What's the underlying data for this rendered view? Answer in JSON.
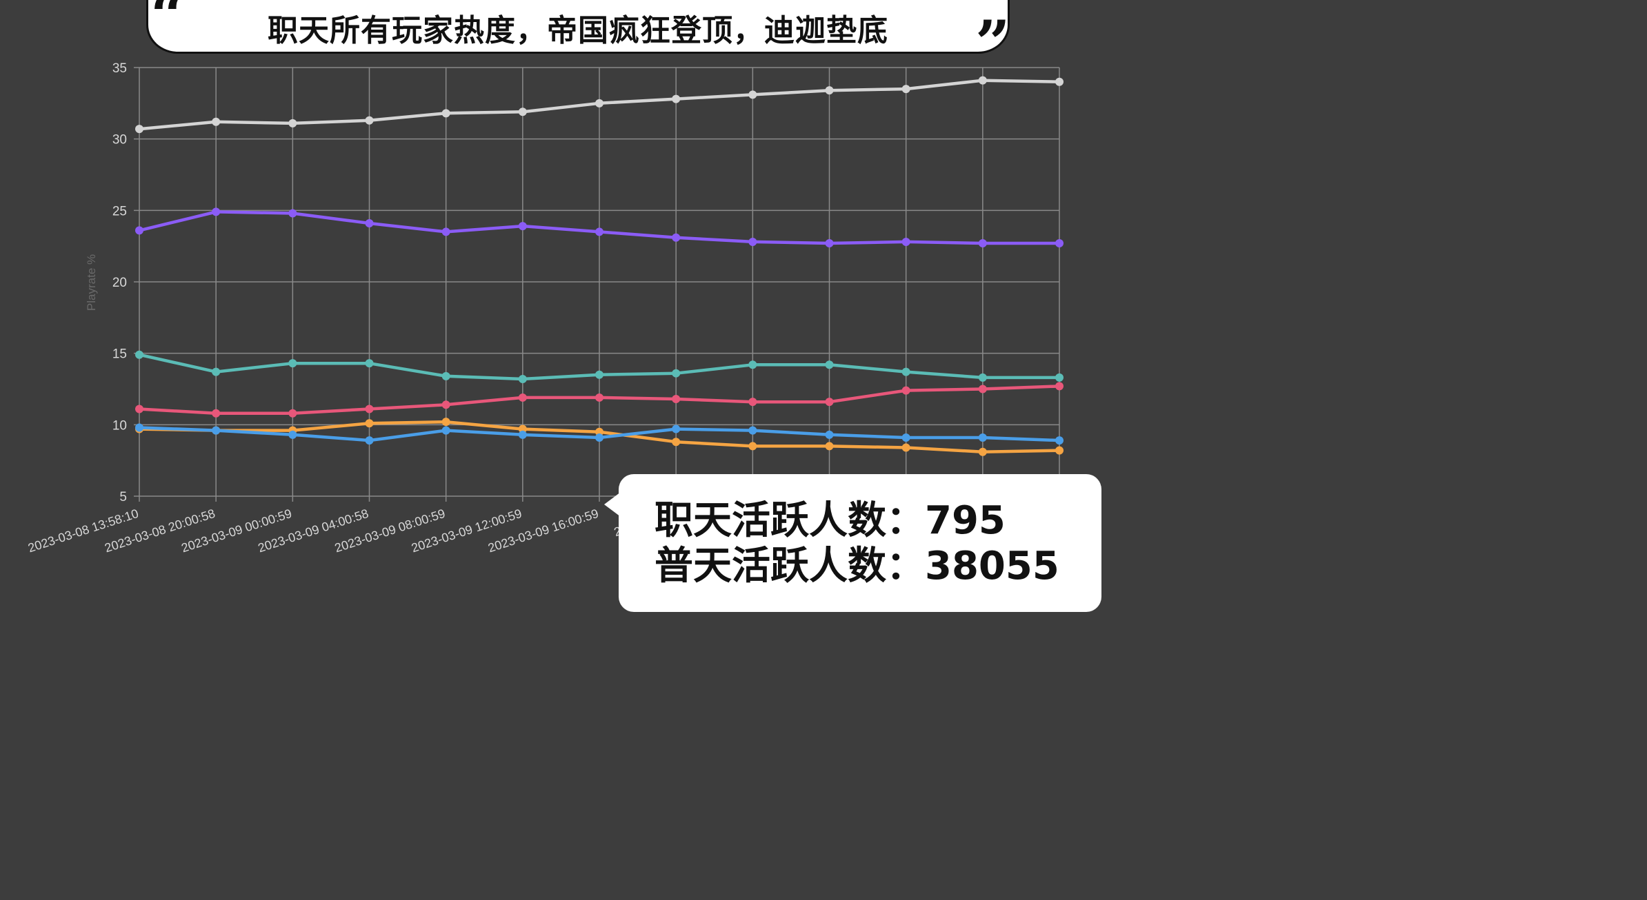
{
  "title": "职天所有玩家热度，帝国疯狂登顶，迪迦垫底",
  "quote_open": "“",
  "quote_close": "”",
  "info": {
    "line1": "职天活跃人数：795",
    "line2": "普天活跃人数：38055"
  },
  "chart_data": {
    "type": "line",
    "title": "",
    "xlabel": "",
    "ylabel": "Playrate %",
    "ylim": [
      5,
      35
    ],
    "yticks": [
      5,
      10,
      15,
      20,
      25,
      30,
      35
    ],
    "grid": true,
    "x": [
      "2023-03-08 13:58:10",
      "2023-03-08 20:00:58",
      "2023-03-09 00:00:59",
      "2023-03-09 04:00:58",
      "2023-03-09 08:00:59",
      "2023-03-09 12:00:59",
      "2023-03-09 16:00:59",
      "2023-03-09",
      "",
      "",
      "",
      "",
      ""
    ],
    "series": [
      {
        "color": "#d4d4d4",
        "values": [
          30.7,
          31.2,
          31.1,
          31.3,
          31.8,
          31.9,
          32.5,
          32.8,
          33.1,
          33.4,
          33.5,
          34.1,
          34.0
        ]
      },
      {
        "color": "#8b5cf6",
        "values": [
          23.6,
          24.9,
          24.8,
          24.1,
          23.5,
          23.9,
          23.5,
          23.1,
          22.8,
          22.7,
          22.8,
          22.7,
          22.7
        ]
      },
      {
        "color": "#5bbcb6",
        "values": [
          14.9,
          13.7,
          14.3,
          14.3,
          13.4,
          13.2,
          13.5,
          13.6,
          14.2,
          14.2,
          13.7,
          13.3,
          13.3
        ]
      },
      {
        "color": "#e8577a",
        "values": [
          11.1,
          10.8,
          10.8,
          11.1,
          11.4,
          11.9,
          11.9,
          11.8,
          11.6,
          11.6,
          12.4,
          12.5,
          12.7
        ]
      },
      {
        "color": "#f5a443",
        "values": [
          9.7,
          9.6,
          9.6,
          10.1,
          10.2,
          9.7,
          9.5,
          8.8,
          8.5,
          8.5,
          8.4,
          8.1,
          8.2
        ]
      },
      {
        "color": "#4a9ee8",
        "values": [
          9.8,
          9.6,
          9.3,
          8.9,
          9.6,
          9.3,
          9.1,
          9.7,
          9.6,
          9.3,
          9.1,
          9.1,
          8.9
        ]
      }
    ]
  }
}
